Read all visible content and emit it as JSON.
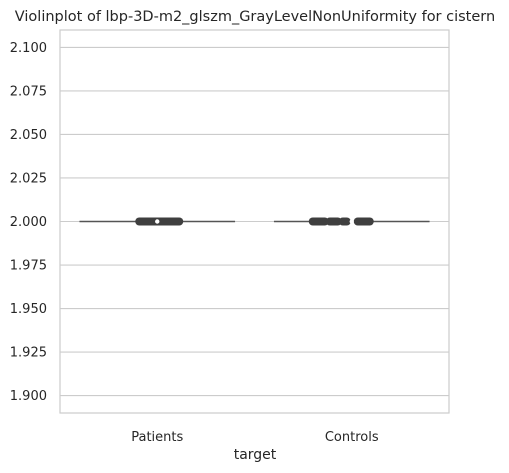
{
  "chart_data": {
    "type": "violin",
    "title": "Violinplot of lbp-3D-m2_glszm_GrayLevelNonUniformity for cistern",
    "xlabel": "target",
    "ylabel": "",
    "categories": [
      "Patients",
      "Controls"
    ],
    "ylim": [
      1.89,
      2.11
    ],
    "yticks": [
      1.9,
      1.925,
      1.95,
      1.975,
      2.0,
      2.025,
      2.05,
      2.075,
      2.1
    ],
    "ytick_labels": [
      "1.900",
      "1.925",
      "1.950",
      "1.975",
      "2.000",
      "2.025",
      "2.050",
      "2.075",
      "2.100"
    ],
    "grid": "horizontal",
    "series": [
      {
        "category": "Patients",
        "median": 2.0,
        "q1": 2.0,
        "q3": 2.0,
        "min": 2.0,
        "max": 2.0
      },
      {
        "category": "Controls",
        "median": 2.0,
        "q1": 2.0,
        "q3": 2.0,
        "min": 2.0,
        "max": 2.0
      }
    ],
    "colors": {
      "grid": "#cccccc",
      "line": "#555555",
      "marker": "#3f3f3f",
      "frame": "#cccccc"
    }
  }
}
